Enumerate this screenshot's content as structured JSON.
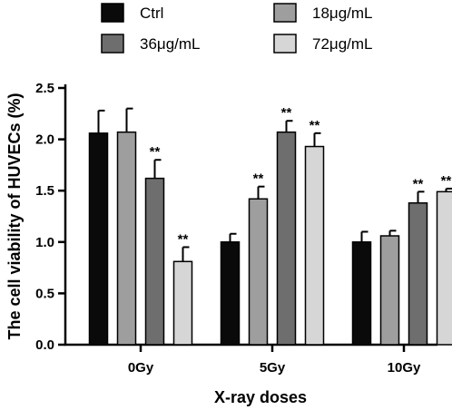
{
  "chart_data": {
    "type": "bar",
    "xlabel": "X-ray doses",
    "ylabel": "The cell viability of HUVECs (%)",
    "ylim": [
      0,
      2.5
    ],
    "yticks": [
      "0.0",
      "0.5",
      "1.0",
      "1.5",
      "2.0",
      "2.5"
    ],
    "categories": [
      "0Gy",
      "5Gy",
      "10Gy"
    ],
    "legend_position": "top",
    "series": [
      {
        "name": "Ctrl",
        "color": "#0a0a0a",
        "values": [
          2.06,
          1.0,
          1.0
        ],
        "errors": [
          0.22,
          0.08,
          0.1
        ],
        "significance": [
          "",
          "",
          ""
        ]
      },
      {
        "name": "18μg/mL",
        "color": "#9e9e9e",
        "values": [
          2.07,
          1.42,
          1.06
        ],
        "errors": [
          0.23,
          0.12,
          0.05
        ],
        "significance": [
          "",
          "**",
          ""
        ]
      },
      {
        "name": "36μg/mL",
        "color": "#6e6e6e",
        "values": [
          1.62,
          2.07,
          1.38
        ],
        "errors": [
          0.18,
          0.11,
          0.11
        ],
        "significance": [
          "**",
          "**",
          "**"
        ]
      },
      {
        "name": "72μg/mL",
        "color": "#d6d6d6",
        "values": [
          0.81,
          1.93,
          1.49
        ],
        "errors": [
          0.14,
          0.13,
          0.03
        ],
        "significance": [
          "**",
          "**",
          "**"
        ]
      }
    ]
  }
}
